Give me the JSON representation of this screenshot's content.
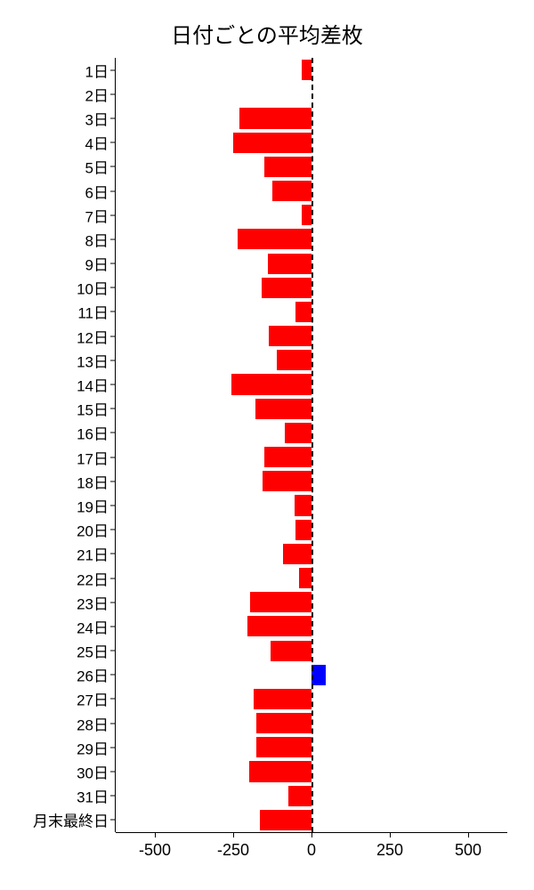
{
  "chart": {
    "type": "bar-horizontal",
    "title": "日付ごとの平均差枚",
    "title_fontsize": 24,
    "background_color": "#ffffff",
    "text_color": "#000000",
    "negative_color": "#ff0000",
    "positive_color": "#0000ff",
    "zero_line_color": "#000000",
    "zero_line_style": "dashed",
    "xlim": [
      -625,
      625
    ],
    "xticks": [
      -500,
      -250,
      0,
      250,
      500
    ],
    "xtick_labels": [
      "-500",
      "-250",
      "0",
      "250",
      "500"
    ],
    "bar_height_ratio": 0.85,
    "categories": [
      "1日",
      "2日",
      "3日",
      "4日",
      "5日",
      "6日",
      "7日",
      "8日",
      "9日",
      "10日",
      "11日",
      "12日",
      "13日",
      "14日",
      "15日",
      "16日",
      "17日",
      "18日",
      "19日",
      "20日",
      "21日",
      "22日",
      "23日",
      "24日",
      "25日",
      "26日",
      "27日",
      "28日",
      "29日",
      "30日",
      "31日",
      "月末最終日"
    ],
    "values": [
      -30,
      0,
      -230,
      -250,
      -150,
      -125,
      -30,
      -235,
      -140,
      -160,
      -50,
      -135,
      -110,
      -255,
      -180,
      -85,
      -150,
      -155,
      -55,
      -50,
      -90,
      -40,
      -195,
      -205,
      -130,
      45,
      -185,
      -175,
      -175,
      -200,
      -75,
      -165
    ],
    "axis_label_fontsize": 17,
    "xaxis_label_fontsize": 18
  }
}
